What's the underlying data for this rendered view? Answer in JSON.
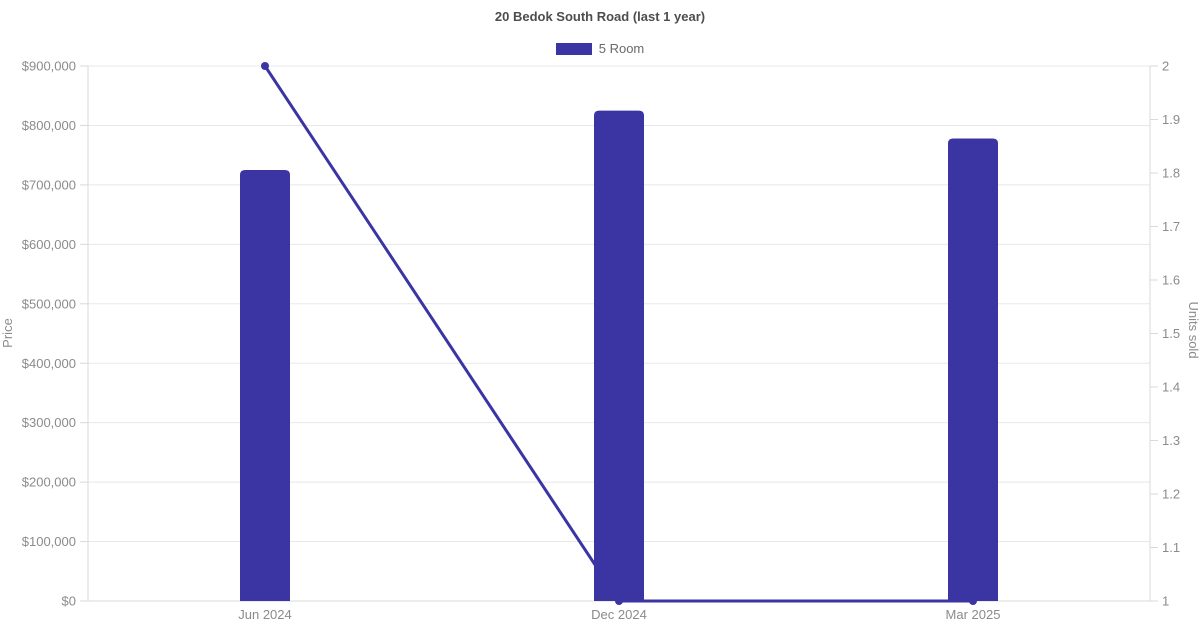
{
  "title": "20 Bedok South Road (last 1 year)",
  "legend": {
    "items": [
      {
        "label": "5 Room",
        "color": "#3a35a3"
      }
    ],
    "position": "top-center"
  },
  "colors": {
    "bar": "#3a35a3",
    "line": "#3a35a3",
    "point": "#3a35a3",
    "grid": "#e8e8e8",
    "axis_line": "#d9d9d9",
    "tick_text": "#8b8b8b",
    "axis_title_text": "#8b8b8b",
    "title_text": "#4d4d4d",
    "legend_text": "#696969",
    "background": "#ffffff"
  },
  "chart_data": {
    "type": "mixed-bar-line",
    "categories": [
      "Jun 2024",
      "Dec 2024",
      "Mar 2025"
    ],
    "series": [
      {
        "name": "5 Room",
        "type": "bar",
        "axis": "left",
        "values": [
          725000,
          825000,
          778000
        ]
      },
      {
        "name": "5 Room",
        "type": "line",
        "axis": "right",
        "values": [
          2,
          1,
          1
        ]
      }
    ],
    "y_axis_left": {
      "label": "Price",
      "min": 0,
      "max": 900000,
      "step": 100000,
      "format": "currency-usd",
      "tick_labels": [
        "$0",
        "$100,000",
        "$200,000",
        "$300,000",
        "$400,000",
        "$500,000",
        "$600,000",
        "$700,000",
        "$800,000",
        "$900,000"
      ]
    },
    "y_axis_right": {
      "label": "Units sold",
      "min": 1,
      "max": 2,
      "step": 0.1,
      "tick_labels": [
        "1",
        "1.1",
        "1.2",
        "1.3",
        "1.4",
        "1.5",
        "1.6",
        "1.7",
        "1.8",
        "1.9",
        "2"
      ]
    },
    "grid": "horizontal gridlines at left-axis ticks only",
    "legend_position": "top-center",
    "title": "20 Bedok South Road (last 1 year)"
  }
}
